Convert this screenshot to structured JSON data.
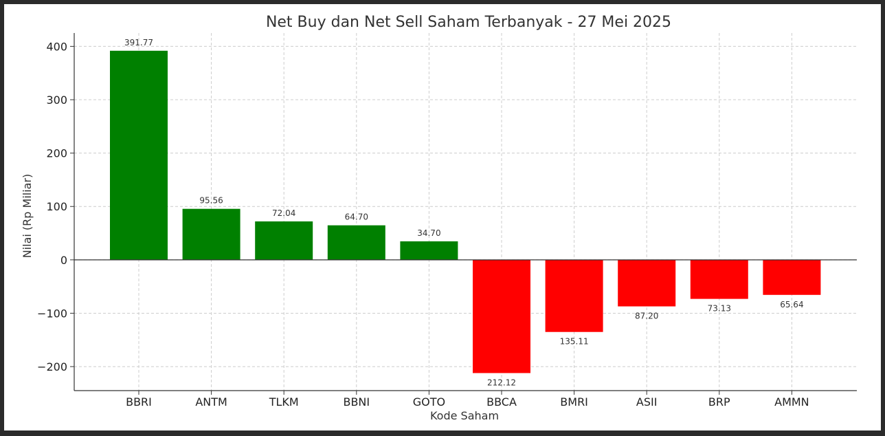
{
  "chart_data": {
    "type": "bar",
    "title": "Net Buy dan Net Sell Saham Terbanyak - 27 Mei 2025",
    "xlabel": "Kode Saham",
    "ylabel": "Nilai (Rp Miliar)",
    "ylim": [
      -245,
      425
    ],
    "yticks": [
      400,
      300,
      200,
      100,
      0,
      -100,
      -200
    ],
    "ytick_labels": [
      "400",
      "300",
      "200",
      "100",
      "0",
      "−100",
      "−200"
    ],
    "grid": true,
    "categories": [
      "BBRI",
      "ANTM",
      "TLKM",
      "BBNI",
      "GOTO",
      "BBCA",
      "BMRI",
      "ASII",
      "BRP",
      "AMMN"
    ],
    "values": [
      391.77,
      95.56,
      72.04,
      64.7,
      34.7,
      -212.12,
      -135.11,
      -87.2,
      -73.13,
      -65.64
    ],
    "data_labels": [
      "391.77",
      "95.56",
      "72.04",
      "64.70",
      "34.70",
      "212.12",
      "135.11",
      "87.20",
      "73.13",
      "65.64"
    ],
    "colors": {
      "positive": "#008000",
      "negative": "#ff0000",
      "grid": "#cccccc",
      "axis": "#333333"
    }
  }
}
